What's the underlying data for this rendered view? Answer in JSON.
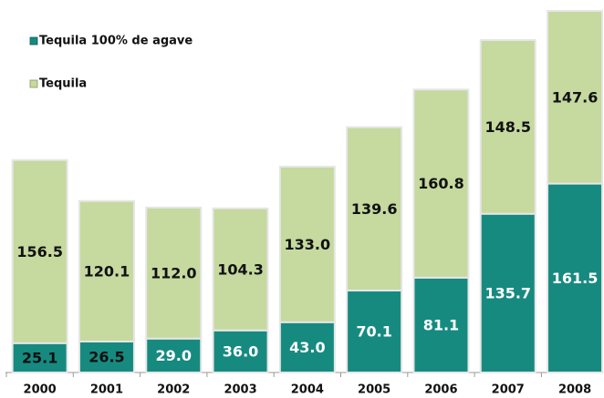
{
  "chart_data": {
    "type": "stacked_bar",
    "categories": [
      "2000",
      "2001",
      "2002",
      "2003",
      "2004",
      "2005",
      "2006",
      "2007",
      "2008"
    ],
    "series": [
      {
        "name": "Tequila 100% de agave",
        "color": "#178a80",
        "values": [
          25.1,
          26.5,
          29.0,
          36.0,
          43.0,
          70.1,
          81.1,
          135.7,
          161.5
        ],
        "value_labels": [
          "25.1",
          "26.5",
          "29.0",
          "36.0",
          "43.0",
          "70.1",
          "81.1",
          "135.7",
          "161.5"
        ]
      },
      {
        "name": "Tequila",
        "color": "#c6d99f",
        "values": [
          156.5,
          120.1,
          112.0,
          104.3,
          133.0,
          139.6,
          160.8,
          148.5,
          147.6
        ],
        "value_labels": [
          "156.5",
          "120.1",
          "112.0",
          "104.3",
          "133.0",
          "139.6",
          "160.8",
          "148.5",
          "147.6"
        ]
      }
    ],
    "legend": "top-left"
  }
}
